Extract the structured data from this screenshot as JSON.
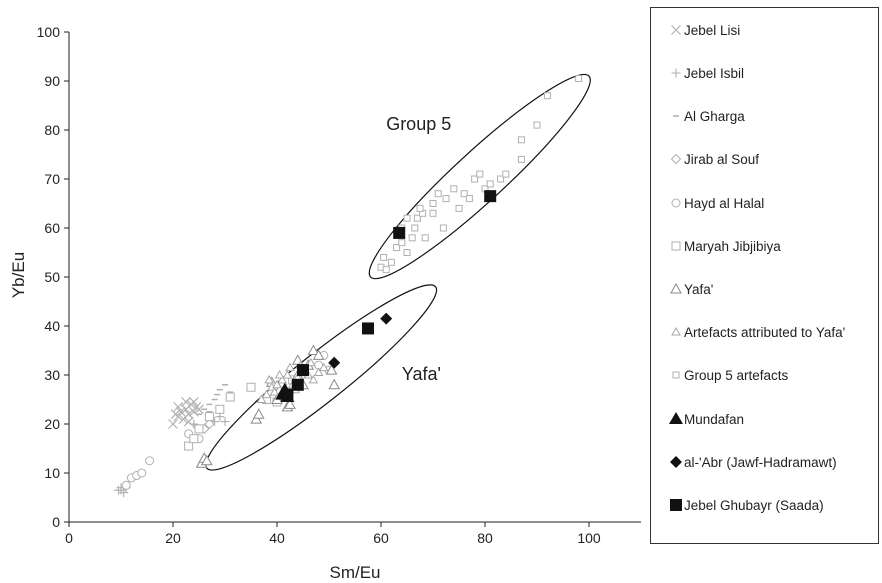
{
  "chart_data": {
    "type": "scatter",
    "title": "",
    "xlabel": "Sm/Eu",
    "ylabel": "Yb/Eu",
    "xlim": [
      0,
      110
    ],
    "ylim": [
      0,
      100
    ],
    "x_ticks": [
      0,
      20,
      40,
      60,
      80,
      100
    ],
    "y_ticks": [
      0,
      10,
      20,
      30,
      40,
      50,
      60,
      70,
      80,
      90,
      100
    ],
    "grid": false,
    "legend_position": "right",
    "annotations": [
      {
        "text": "Group 5",
        "x": 61,
        "y": 80
      },
      {
        "text": "Yafa'",
        "x": 64,
        "y": 29
      }
    ],
    "ellipses": [
      {
        "label": "Group 5",
        "center": [
          79,
          70.5
        ],
        "angle_from": [
          59,
          50
        ],
        "angle_to": [
          101,
          91
        ]
      },
      {
        "label": "Yafa'",
        "center": [
          48.5,
          29.5
        ],
        "angle_from": [
          25,
          10
        ],
        "angle_to": [
          69,
          47
        ]
      }
    ],
    "series": [
      {
        "name": "Jebel Lisi",
        "marker": "x",
        "color": "#b0b0b0",
        "points": [
          [
            20,
            20
          ],
          [
            21,
            21.5
          ],
          [
            21.5,
            22.5
          ],
          [
            22,
            21
          ],
          [
            22.5,
            23
          ],
          [
            23,
            22
          ],
          [
            23.5,
            24
          ],
          [
            24,
            22.5
          ],
          [
            24.5,
            23.5
          ],
          [
            21,
            23.5
          ],
          [
            22.5,
            24.5
          ],
          [
            23,
            20.5
          ],
          [
            24,
            24.5
          ],
          [
            25,
            23
          ],
          [
            20.5,
            22
          ]
        ]
      },
      {
        "name": "Jebel Isbil",
        "marker": "+",
        "color": "#b0b0b0",
        "points": [
          [
            9.5,
            6.5
          ],
          [
            10,
            7
          ],
          [
            10.5,
            6
          ],
          [
            10,
            6.5
          ],
          [
            11,
            7
          ],
          [
            28,
            20.5
          ],
          [
            29,
            21.5
          ],
          [
            30,
            20.5
          ],
          [
            26,
            19
          ],
          [
            24,
            20
          ]
        ]
      },
      {
        "name": "Al Gharga",
        "marker": "-",
        "color": "#b0b0b0",
        "points": [
          [
            25,
            22
          ],
          [
            26,
            23
          ],
          [
            27,
            24
          ],
          [
            28,
            25
          ],
          [
            29,
            27
          ],
          [
            30,
            28
          ],
          [
            28.5,
            26
          ],
          [
            27,
            22.5
          ],
          [
            29,
            23
          ],
          [
            31,
            26.5
          ]
        ]
      },
      {
        "name": "Jirab al Souf",
        "marker": "diamond",
        "color": "#b0b0b0",
        "points": [
          [
            26,
            19
          ],
          [
            27,
            20
          ],
          [
            41,
            28
          ],
          [
            42,
            26
          ],
          [
            43,
            27
          ]
        ]
      },
      {
        "name": "Hayd al Halal",
        "marker": "circle",
        "color": "#b0b0b0",
        "points": [
          [
            11,
            7.5
          ],
          [
            12,
            9
          ],
          [
            13,
            9.5
          ],
          [
            14,
            10
          ],
          [
            15.5,
            12.5
          ],
          [
            23,
            18
          ],
          [
            25,
            17
          ],
          [
            48,
            32
          ],
          [
            49,
            34
          ],
          [
            50,
            31
          ]
        ]
      },
      {
        "name": "Maryah Jibjibiya",
        "marker": "square",
        "color": "#b0b0b0",
        "points": [
          [
            23,
            15.5
          ],
          [
            24,
            17
          ],
          [
            25,
            19
          ],
          [
            27,
            21.5
          ],
          [
            29,
            23
          ],
          [
            31,
            25.5
          ],
          [
            35,
            27.5
          ],
          [
            38,
            25
          ],
          [
            40,
            24.5
          ],
          [
            43,
            29
          ]
        ]
      },
      {
        "name": "Yafa'",
        "marker": "triangle",
        "color": "#8a8a8a",
        "points": [
          [
            25.5,
            12
          ],
          [
            26,
            13
          ],
          [
            26.5,
            12.5
          ],
          [
            36,
            21
          ],
          [
            36.5,
            22
          ],
          [
            40,
            25
          ],
          [
            40.5,
            27
          ],
          [
            41,
            26
          ],
          [
            42,
            23.5
          ],
          [
            44,
            30
          ],
          [
            45,
            28
          ],
          [
            46,
            32
          ],
          [
            47,
            35
          ],
          [
            48,
            34
          ],
          [
            50.5,
            31
          ],
          [
            51,
            28
          ],
          [
            42.5,
            24
          ],
          [
            39,
            28.5
          ],
          [
            44,
            33
          ]
        ]
      },
      {
        "name": "Artefacts attributed to Yafa'",
        "marker": "triangle-small",
        "color": "#a8a8a8",
        "points": [
          [
            37,
            25
          ],
          [
            38,
            26
          ],
          [
            39,
            27.5
          ],
          [
            40,
            28
          ],
          [
            41,
            29
          ],
          [
            42,
            30
          ],
          [
            43,
            28
          ],
          [
            44,
            29.5
          ],
          [
            45,
            31
          ],
          [
            46,
            30
          ],
          [
            47,
            29
          ],
          [
            48,
            30.5
          ],
          [
            49,
            31.5
          ],
          [
            40.5,
            30
          ],
          [
            42.5,
            31.5
          ],
          [
            44.5,
            32
          ],
          [
            39.5,
            26.5
          ],
          [
            43.5,
            27
          ],
          [
            46.5,
            32.5
          ],
          [
            38.5,
            29
          ]
        ]
      },
      {
        "name": "Group 5 artefacts",
        "marker": "square-small",
        "color": "#b0b0b0",
        "points": [
          [
            60,
            52
          ],
          [
            60.5,
            54
          ],
          [
            61,
            51.5
          ],
          [
            62,
            53
          ],
          [
            63,
            56
          ],
          [
            64,
            57
          ],
          [
            65,
            55
          ],
          [
            66,
            58
          ],
          [
            66.5,
            60
          ],
          [
            67,
            62
          ],
          [
            68,
            63
          ],
          [
            68.5,
            58
          ],
          [
            70,
            65
          ],
          [
            71,
            67
          ],
          [
            72,
            60
          ],
          [
            72.5,
            66
          ],
          [
            74,
            68
          ],
          [
            75,
            64
          ],
          [
            76,
            67
          ],
          [
            77,
            66
          ],
          [
            78,
            70
          ],
          [
            79,
            71
          ],
          [
            80,
            68
          ],
          [
            81,
            69
          ],
          [
            83,
            70
          ],
          [
            84,
            71
          ],
          [
            87,
            74
          ],
          [
            87,
            78
          ],
          [
            90,
            81
          ],
          [
            92,
            87
          ],
          [
            98,
            90.5
          ],
          [
            65,
            62
          ],
          [
            64,
            60
          ],
          [
            67.5,
            64
          ],
          [
            70,
            63
          ]
        ]
      },
      {
        "name": "Mundafan",
        "marker": "triangle-filled",
        "color": "#111111",
        "points": [
          [
            41,
            26
          ],
          [
            42,
            25.5
          ],
          [
            41.5,
            27
          ]
        ]
      },
      {
        "name": "al-'Abr (Jawf-Hadramawt)",
        "marker": "diamond-filled",
        "color": "#111111",
        "points": [
          [
            51,
            32.5
          ],
          [
            61,
            41.5
          ]
        ]
      },
      {
        "name": "Jebel Ghubayr (Saada)",
        "marker": "square-filled",
        "color": "#111111",
        "points": [
          [
            42,
            26
          ],
          [
            44,
            28
          ],
          [
            45,
            31
          ],
          [
            57.5,
            39.5
          ],
          [
            63.5,
            59
          ],
          [
            81,
            66.5
          ]
        ]
      }
    ]
  }
}
